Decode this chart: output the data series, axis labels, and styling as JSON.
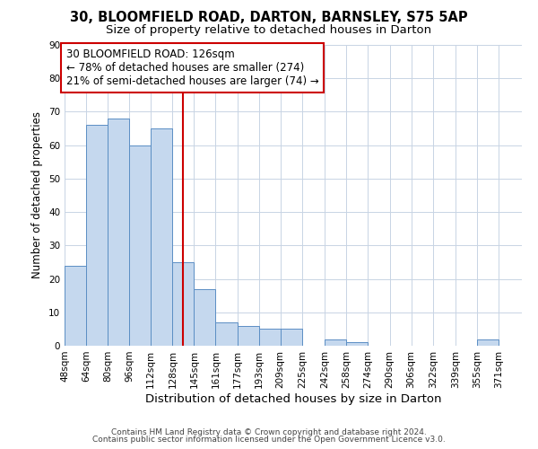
{
  "title1": "30, BLOOMFIELD ROAD, DARTON, BARNSLEY, S75 5AP",
  "title2": "Size of property relative to detached houses in Darton",
  "xlabel": "Distribution of detached houses by size in Darton",
  "ylabel": "Number of detached properties",
  "bin_labels": [
    "48sqm",
    "64sqm",
    "80sqm",
    "96sqm",
    "112sqm",
    "128sqm",
    "145sqm",
    "161sqm",
    "177sqm",
    "193sqm",
    "209sqm",
    "225sqm",
    "242sqm",
    "258sqm",
    "274sqm",
    "290sqm",
    "306sqm",
    "322sqm",
    "339sqm",
    "355sqm",
    "371sqm"
  ],
  "bin_left_edges": [
    40,
    56,
    72,
    88,
    104,
    120,
    136,
    152,
    168,
    184,
    200,
    216,
    233,
    249,
    265,
    281,
    297,
    313,
    330,
    346,
    362
  ],
  "bin_right_edges": [
    56,
    72,
    88,
    104,
    120,
    136,
    152,
    168,
    184,
    200,
    216,
    233,
    249,
    265,
    281,
    297,
    313,
    330,
    346,
    362,
    379
  ],
  "counts": [
    24,
    66,
    68,
    60,
    65,
    25,
    17,
    7,
    6,
    5,
    5,
    0,
    2,
    1,
    0,
    0,
    0,
    0,
    0,
    2,
    0
  ],
  "bar_facecolor": "#c5d8ee",
  "bar_edgecolor": "#5b8ec4",
  "vline_x": 128,
  "vline_color": "#cc0000",
  "annotation_text": "30 BLOOMFIELD ROAD: 126sqm\n← 78% of detached houses are smaller (274)\n21% of semi-detached houses are larger (74) →",
  "annotation_box_edgecolor": "#cc0000",
  "annotation_box_facecolor": "#ffffff",
  "ylim": [
    0,
    90
  ],
  "yticks": [
    0,
    10,
    20,
    30,
    40,
    50,
    60,
    70,
    80,
    90
  ],
  "footer1": "Contains HM Land Registry data © Crown copyright and database right 2024.",
  "footer2": "Contains public sector information licensed under the Open Government Licence v3.0.",
  "background_color": "#ffffff",
  "grid_color": "#c8d4e4",
  "title1_fontsize": 10.5,
  "title2_fontsize": 9.5,
  "xlabel_fontsize": 9.5,
  "ylabel_fontsize": 8.5,
  "tick_fontsize": 7.5,
  "annotation_fontsize": 8.5,
  "footer_fontsize": 6.5
}
